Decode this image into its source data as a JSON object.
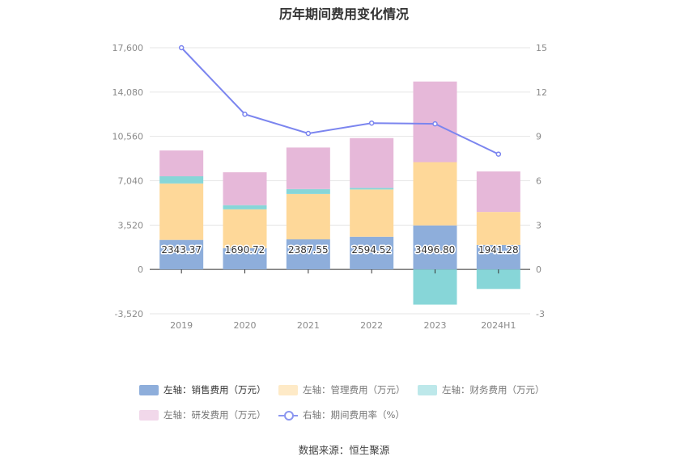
{
  "title": "历年期间费用变化情况",
  "source": "数据来源：恒生聚源",
  "colors": {
    "sales": "#8eaedb",
    "management": "#fed899",
    "finance": "#87d6d8",
    "rnd": "#e6b8d9",
    "rate": "#7b85ef"
  },
  "legend": [
    {
      "key": "sales",
      "label": "左轴：销售费用（万元）",
      "type": "bar"
    },
    {
      "key": "management",
      "label": "左轴：管理费用（万元）",
      "type": "bar"
    },
    {
      "key": "finance",
      "label": "左轴：财务费用（万元）",
      "type": "bar"
    },
    {
      "key": "rnd",
      "label": "左轴：研发费用（万元）",
      "type": "bar"
    },
    {
      "key": "rate",
      "label": "右轴：期间费用率（%）",
      "type": "line"
    }
  ],
  "chart_data": {
    "type": "bar",
    "stacked": true,
    "categories": [
      "2019",
      "2020",
      "2021",
      "2022",
      "2023",
      "2024H1"
    ],
    "left_axis": {
      "ticks": [
        "17,600",
        "14,080",
        "10,560",
        "7,040",
        "3,520",
        "0",
        "-3,520"
      ],
      "ylim": [
        -3520,
        17600
      ]
    },
    "right_axis": {
      "ticks": [
        "15",
        "12",
        "9",
        "6",
        "3",
        "0",
        "-3"
      ],
      "ylim": [
        -3,
        15
      ]
    },
    "series": [
      {
        "key": "sales",
        "name": "左轴：销售费用（万元）",
        "axis": "left",
        "values": [
          2343.37,
          1690.72,
          2387.55,
          2594.52,
          3496.8,
          1941.28
        ],
        "labels": [
          "2343.37",
          "1690.72",
          "2387.55",
          "2594.52",
          "3496.80",
          "1941.28"
        ]
      },
      {
        "key": "management",
        "name": "左轴：管理费用（万元）",
        "axis": "left",
        "values": [
          4480,
          3080,
          3600,
          3750,
          5020,
          2620
        ]
      },
      {
        "key": "finance",
        "name": "左轴：财务费用（万元）",
        "axis": "left",
        "values": [
          570,
          330,
          390,
          130,
          -2790,
          -1550
        ]
      },
      {
        "key": "rnd",
        "name": "左轴：研发费用（万元）",
        "axis": "left",
        "values": [
          2050,
          2610,
          3300,
          3950,
          6400,
          3220
        ]
      },
      {
        "key": "rate",
        "name": "右轴：期间费用率（%）",
        "axis": "right",
        "type": "line",
        "values": [
          15.0,
          10.5,
          9.2,
          9.9,
          9.85,
          7.8
        ]
      }
    ]
  }
}
